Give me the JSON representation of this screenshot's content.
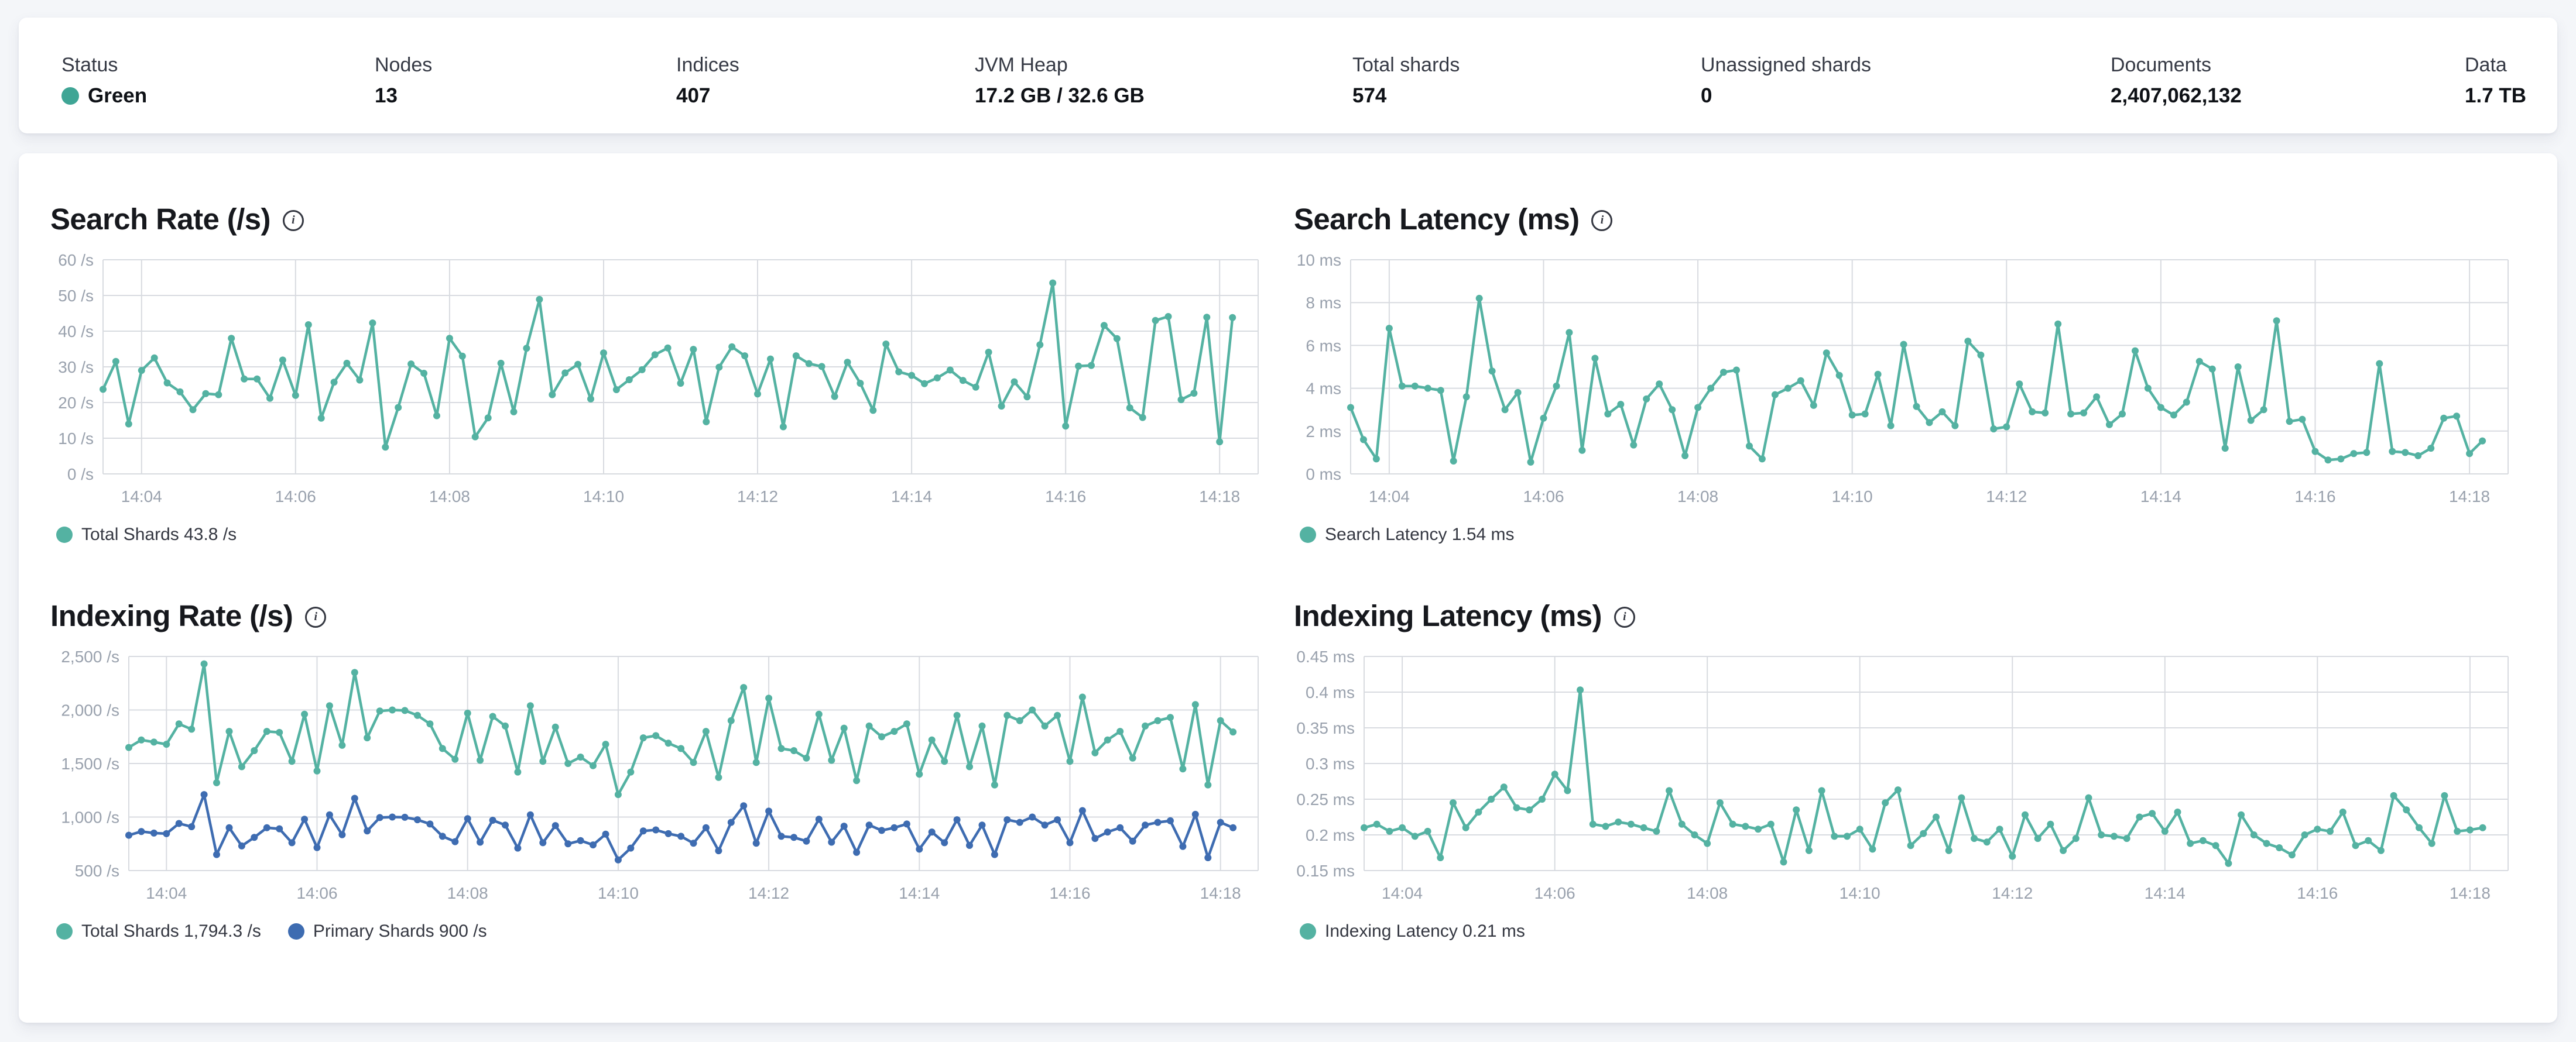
{
  "status_bar": {
    "items": [
      {
        "label": "Status",
        "value": "Green",
        "dot_color": "#3fa595"
      },
      {
        "label": "Nodes",
        "value": "13"
      },
      {
        "label": "Indices",
        "value": "407"
      },
      {
        "label": "JVM Heap",
        "value": "17.2 GB / 32.6 GB"
      },
      {
        "label": "Total shards",
        "value": "574"
      },
      {
        "label": "Unassigned shards",
        "value": "0"
      },
      {
        "label": "Documents",
        "value": "2,407,062,132"
      },
      {
        "label": "Data",
        "value": "1.7 TB"
      }
    ]
  },
  "colors": {
    "teal": "#54b2a2",
    "blue": "#3e6cb1",
    "grid": "#d8dbe0",
    "axis_text": "#99a1ad",
    "status_green": "#3fa595"
  },
  "x_axis": {
    "tick_labels": [
      "14:04",
      "14:06",
      "14:08",
      "14:10",
      "14:12",
      "14:14",
      "14:16",
      "14:18"
    ],
    "tick_seconds": [
      30,
      150,
      270,
      390,
      510,
      630,
      750,
      870
    ],
    "domain_seconds": 900,
    "point_interval_seconds": 10
  },
  "chart_data": [
    {
      "id": "search-rate",
      "type": "line",
      "title": "Search Rate (/s)",
      "y_domain": [
        0,
        60
      ],
      "y_tick_values": [
        0,
        10,
        20,
        30,
        40,
        50,
        60
      ],
      "y_tick_labels": [
        "0 /s",
        "10 /s",
        "20 /s",
        "30 /s",
        "40 /s",
        "50 /s",
        "60 /s"
      ],
      "grid": true,
      "legend_position": "bottom",
      "series": [
        {
          "name": "Total Shards",
          "color": "#54b2a2",
          "values": [
            23.7,
            31.5,
            14.0,
            29.0,
            32.5,
            25.5,
            23.0,
            18.0,
            22.5,
            22.2,
            38.0,
            26.6,
            26.6,
            21.2,
            31.9,
            22.0,
            41.8,
            15.6,
            25.7,
            31.0,
            26.3,
            42.3,
            7.5,
            18.6,
            30.8,
            28.2,
            16.3,
            38.0,
            33.0,
            10.4,
            15.7,
            31.0,
            17.4,
            35.2,
            48.9,
            22.2,
            28.3,
            30.7,
            21.0,
            33.9,
            23.6,
            26.4,
            29.2,
            33.4,
            35.3,
            25.4,
            34.9,
            14.6,
            29.9,
            35.6,
            33.1,
            22.4,
            32.2,
            13.2,
            33.1,
            30.9,
            30.1,
            21.7,
            31.3,
            25.4,
            17.8,
            36.4,
            28.6,
            27.6,
            25.3,
            26.9,
            29.1,
            26.2,
            24.3,
            34.1,
            19.0,
            25.8,
            21.6,
            36.2,
            53.5,
            13.4,
            30.2,
            30.4,
            41.6,
            37.9,
            18.5,
            15.8,
            43.0,
            44.1,
            20.8,
            22.6,
            43.9,
            9.0,
            43.8
          ]
        }
      ],
      "legend": [
        {
          "label": "Total Shards 43.8 /s",
          "color": "#54b2a2"
        }
      ]
    },
    {
      "id": "search-latency",
      "type": "line",
      "title": "Search Latency (ms)",
      "y_domain": [
        0,
        10
      ],
      "y_tick_values": [
        0,
        2,
        4,
        6,
        8,
        10
      ],
      "y_tick_labels": [
        "0 ms",
        "2 ms",
        "4 ms",
        "6 ms",
        "8 ms",
        "10 ms"
      ],
      "grid": true,
      "legend_position": "bottom",
      "series": [
        {
          "name": "Search Latency",
          "color": "#54b2a2",
          "values": [
            3.1,
            1.6,
            0.7,
            6.8,
            4.1,
            4.1,
            4.0,
            3.9,
            0.6,
            3.6,
            8.2,
            4.8,
            3.0,
            3.8,
            0.55,
            2.6,
            4.1,
            6.6,
            1.1,
            5.4,
            2.8,
            3.25,
            1.35,
            3.5,
            4.2,
            3.0,
            0.85,
            3.1,
            4.0,
            4.75,
            4.85,
            1.3,
            0.7,
            3.7,
            4.0,
            4.35,
            3.2,
            5.65,
            4.6,
            2.75,
            2.8,
            4.65,
            2.25,
            6.05,
            3.15,
            2.4,
            2.9,
            2.25,
            6.2,
            5.55,
            2.1,
            2.2,
            4.2,
            2.9,
            2.85,
            7.0,
            2.8,
            2.85,
            3.6,
            2.3,
            2.8,
            5.75,
            4.0,
            3.1,
            2.75,
            3.35,
            5.25,
            4.9,
            1.2,
            5.0,
            2.5,
            3.0,
            7.15,
            2.45,
            2.55,
            1.05,
            0.65,
            0.7,
            0.95,
            1.0,
            5.15,
            1.05,
            1.0,
            0.85,
            1.2,
            2.6,
            2.7,
            0.95,
            1.54
          ]
        }
      ],
      "legend": [
        {
          "label": "Search Latency 1.54 ms",
          "color": "#54b2a2"
        }
      ]
    },
    {
      "id": "indexing-rate",
      "type": "line",
      "title": "Indexing Rate (/s)",
      "y_domain": [
        500,
        2500
      ],
      "y_tick_values": [
        500,
        1000,
        1500,
        2000,
        2500
      ],
      "y_tick_labels": [
        "500 /s",
        "1,000 /s",
        "1,500 /s",
        "2,000 /s",
        "2,500 /s"
      ],
      "grid": true,
      "legend_position": "bottom",
      "series": [
        {
          "name": "Total Shards",
          "color": "#54b2a2",
          "values": [
            1650,
            1720,
            1700,
            1680,
            1870,
            1820,
            2430,
            1320,
            1800,
            1470,
            1620,
            1800,
            1790,
            1520,
            1960,
            1430,
            2040,
            1670,
            2350,
            1740,
            1990,
            2000,
            1995,
            1950,
            1870,
            1640,
            1540,
            1970,
            1530,
            1940,
            1850,
            1420,
            2040,
            1520,
            1840,
            1500,
            1560,
            1480,
            1680,
            1210,
            1420,
            1740,
            1760,
            1690,
            1640,
            1510,
            1800,
            1370,
            1900,
            2210,
            1510,
            2110,
            1640,
            1620,
            1550,
            1960,
            1530,
            1830,
            1340,
            1850,
            1750,
            1800,
            1870,
            1400,
            1720,
            1520,
            1950,
            1470,
            1850,
            1300,
            1950,
            1900,
            2000,
            1850,
            1950,
            1520,
            2120,
            1600,
            1720,
            1800,
            1550,
            1850,
            1900,
            1930,
            1450,
            2050,
            1300,
            1900,
            1794.3
          ]
        },
        {
          "name": "Primary Shards",
          "color": "#3e6cb1",
          "values": [
            830,
            865,
            850,
            845,
            940,
            910,
            1210,
            650,
            900,
            730,
            810,
            900,
            890,
            760,
            980,
            715,
            1020,
            835,
            1175,
            870,
            995,
            1000,
            998,
            975,
            935,
            820,
            770,
            985,
            765,
            970,
            925,
            710,
            1020,
            760,
            920,
            750,
            780,
            740,
            840,
            600,
            710,
            870,
            880,
            845,
            820,
            755,
            900,
            685,
            950,
            1105,
            755,
            1055,
            820,
            810,
            775,
            980,
            765,
            915,
            670,
            925,
            875,
            900,
            935,
            700,
            860,
            760,
            975,
            735,
            925,
            650,
            975,
            950,
            1000,
            925,
            975,
            760,
            1060,
            800,
            860,
            900,
            775,
            925,
            950,
            965,
            725,
            1025,
            620,
            950,
            900
          ]
        }
      ],
      "legend": [
        {
          "label": "Total Shards 1,794.3 /s",
          "color": "#54b2a2"
        },
        {
          "label": "Primary Shards 900 /s",
          "color": "#3e6cb1"
        }
      ]
    },
    {
      "id": "indexing-latency",
      "type": "line",
      "title": "Indexing Latency (ms)",
      "y_domain": [
        0.15,
        0.45
      ],
      "y_tick_values": [
        0.15,
        0.2,
        0.25,
        0.3,
        0.35,
        0.4,
        0.45
      ],
      "y_tick_labels": [
        "0.15 ms",
        "0.2 ms",
        "0.25 ms",
        "0.3 ms",
        "0.35 ms",
        "0.4 ms",
        "0.45 ms"
      ],
      "grid": true,
      "legend_position": "bottom",
      "series": [
        {
          "name": "Indexing Latency",
          "color": "#54b2a2",
          "values": [
            0.21,
            0.215,
            0.205,
            0.21,
            0.198,
            0.205,
            0.168,
            0.245,
            0.21,
            0.232,
            0.25,
            0.267,
            0.238,
            0.235,
            0.25,
            0.285,
            0.262,
            0.403,
            0.215,
            0.212,
            0.218,
            0.215,
            0.21,
            0.205,
            0.262,
            0.215,
            0.2,
            0.188,
            0.245,
            0.215,
            0.212,
            0.208,
            0.215,
            0.162,
            0.235,
            0.178,
            0.262,
            0.198,
            0.198,
            0.208,
            0.18,
            0.245,
            0.263,
            0.185,
            0.202,
            0.225,
            0.178,
            0.252,
            0.195,
            0.19,
            0.208,
            0.17,
            0.228,
            0.195,
            0.215,
            0.178,
            0.195,
            0.252,
            0.2,
            0.198,
            0.195,
            0.225,
            0.23,
            0.205,
            0.232,
            0.188,
            0.192,
            0.185,
            0.16,
            0.228,
            0.2,
            0.188,
            0.182,
            0.172,
            0.2,
            0.208,
            0.205,
            0.232,
            0.185,
            0.192,
            0.178,
            0.255,
            0.235,
            0.21,
            0.188,
            0.255,
            0.205,
            0.207,
            0.21
          ]
        }
      ],
      "legend": [
        {
          "label": "Indexing Latency 0.21 ms",
          "color": "#54b2a2"
        }
      ]
    }
  ]
}
